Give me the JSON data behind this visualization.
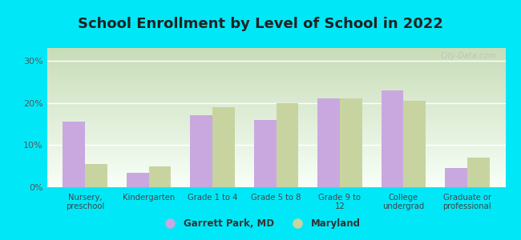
{
  "title": "School Enrollment by Level of School in 2022",
  "categories": [
    "Nursery,\npreschool",
    "Kindergarten",
    "Grade 1 to 4",
    "Grade 5 to 8",
    "Grade 9 to\n12",
    "College\nundergrad",
    "Graduate or\nprofessional"
  ],
  "garrett_values": [
    15.5,
    3.5,
    17.0,
    16.0,
    21.0,
    23.0,
    4.5
  ],
  "maryland_values": [
    5.5,
    5.0,
    19.0,
    20.0,
    21.0,
    20.5,
    7.0
  ],
  "garrett_color": "#c9a8e0",
  "maryland_color": "#c8d4a0",
  "background_outer": "#00e8f8",
  "ylim": [
    0,
    33
  ],
  "yticks": [
    0,
    10,
    20,
    30
  ],
  "ytick_labels": [
    "0%",
    "10%",
    "20%",
    "30%"
  ],
  "legend_label_1": "Garrett Park, MD",
  "legend_label_2": "Maryland",
  "title_fontsize": 13,
  "watermark": "City-Data.com"
}
